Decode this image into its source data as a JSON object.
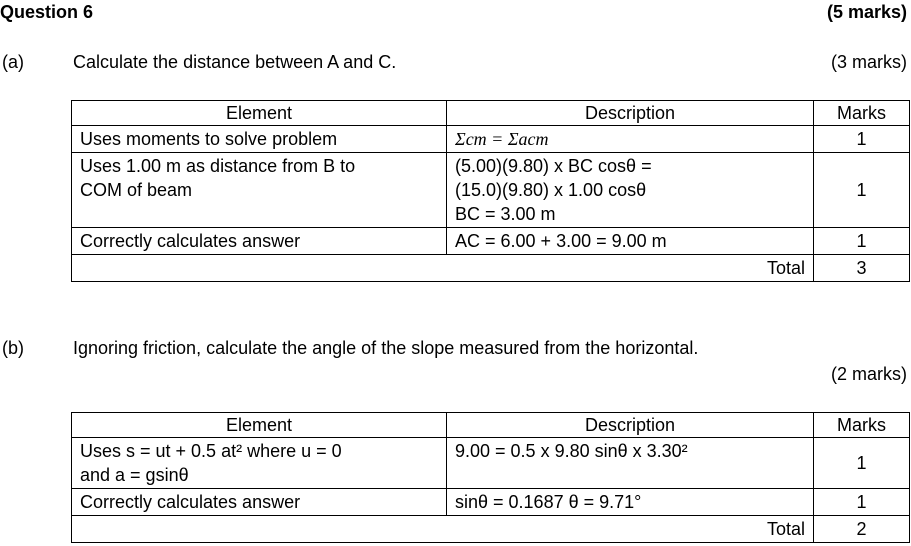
{
  "question": {
    "title": "Question 6",
    "marks": "(5 marks)"
  },
  "part_a": {
    "label": "(a)",
    "prompt": "Calculate the distance between A and C.",
    "marks": "(3 marks)",
    "headers": [
      "Element",
      "Description",
      "Marks"
    ],
    "rows": [
      {
        "element": "Uses moments to solve problem",
        "description": "Σcm = Σacm",
        "marks": "1"
      },
      {
        "element": "Uses 1.00 m as distance from B to\nCOM of beam",
        "description": "(5.00)(9.80) x BC cosθ =\n(15.0)(9.80) x 1.00 cosθ\nBC = 3.00 m",
        "marks": "1"
      },
      {
        "element": "Correctly calculates answer",
        "description": "AC = 6.00 + 3.00 = 9.00 m",
        "marks": "1"
      }
    ],
    "total_label": "Total",
    "total_value": "3"
  },
  "part_b": {
    "label": "(b)",
    "prompt": "Ignoring friction, calculate the angle of the slope measured from the horizontal.",
    "marks": "(2 marks)",
    "headers": [
      "Element",
      "Description",
      "Marks"
    ],
    "rows": [
      {
        "element": "Uses s = ut + 0.5 at² where u = 0\nand a = gsinθ",
        "description": "9.00 = 0.5 x 9.80 sinθ x 3.30²",
        "marks": "1"
      },
      {
        "element": "Correctly calculates answer",
        "description": "sinθ = 0.1687   θ = 9.71°",
        "marks": "1"
      }
    ],
    "total_label": "Total",
    "total_value": "2"
  }
}
